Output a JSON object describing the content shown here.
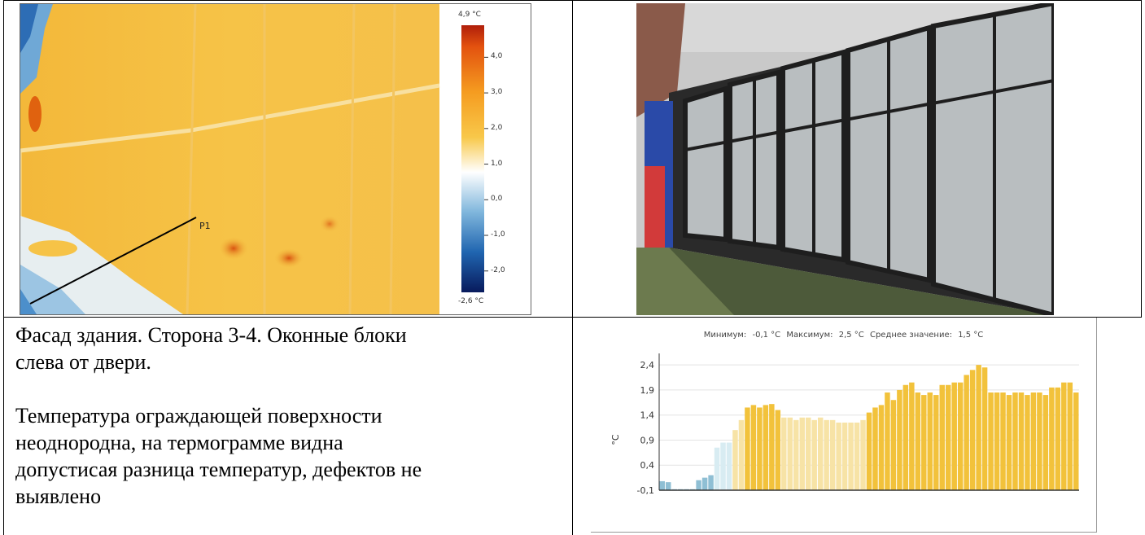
{
  "thermogram": {
    "scale_max": "4,9 °C",
    "scale_min": "-2,6 °C",
    "scale_ticks": [
      "4,0",
      "3,0",
      "2,0",
      "1,0",
      "0,0",
      "-1,0",
      "-2,0"
    ],
    "scale_tick_values": [
      4.0,
      3.0,
      2.0,
      1.0,
      0.0,
      -1.0,
      -2.0
    ],
    "scale_range": [
      -2.6,
      4.9
    ],
    "profile_label": "P1"
  },
  "description": {
    "line1": "Фасад здания. Сторона 3-4. Оконные блоки",
    "line2": "слева от двери.",
    "para2_line1": "Температура ограждающей поверхности",
    "para2_line2": "неоднородна, на термограмме видна",
    "para2_line3": "допустисая разница температур, дефектов не",
    "para2_line4": "выявлено"
  },
  "chart_stats": {
    "min_label": "Минимум:",
    "min_value": "-0,1 °С",
    "max_label": "Максимум:",
    "max_value": "2,5 °С",
    "mean_label": "Среднее значение:",
    "mean_value": "1,5 °С"
  },
  "chart_data": {
    "type": "bar",
    "ylabel": "°C",
    "ylim": [
      -0.1,
      2.5
    ],
    "yticks": [
      "2,4",
      "1,9",
      "1,4",
      "0,9",
      "0,4",
      "-0,1"
    ],
    "ytick_values": [
      2.4,
      1.9,
      1.4,
      0.9,
      0.4,
      -0.1
    ],
    "grid": true,
    "values": [
      0.08,
      0.06,
      -0.1,
      -0.1,
      -0.1,
      -0.1,
      0.1,
      0.15,
      0.2,
      0.75,
      0.85,
      0.85,
      1.1,
      1.3,
      1.55,
      1.6,
      1.55,
      1.6,
      1.62,
      1.5,
      1.35,
      1.35,
      1.3,
      1.35,
      1.35,
      1.3,
      1.35,
      1.3,
      1.3,
      1.25,
      1.25,
      1.25,
      1.25,
      1.3,
      1.45,
      1.55,
      1.6,
      1.85,
      1.7,
      1.9,
      2.0,
      2.05,
      1.85,
      1.8,
      1.85,
      1.8,
      2.0,
      2.0,
      2.05,
      2.05,
      2.2,
      2.3,
      2.4,
      2.35,
      1.85,
      1.85,
      1.85,
      1.8,
      1.85,
      1.85,
      1.8,
      1.85,
      1.85,
      1.8,
      1.95,
      1.95,
      2.05,
      2.05,
      1.85
    ],
    "colors": {
      "cold": "#8fbfd4",
      "pale": "#d8ecf2",
      "warm": "#f2c23b",
      "light_warm": "#f7e3a6"
    }
  }
}
